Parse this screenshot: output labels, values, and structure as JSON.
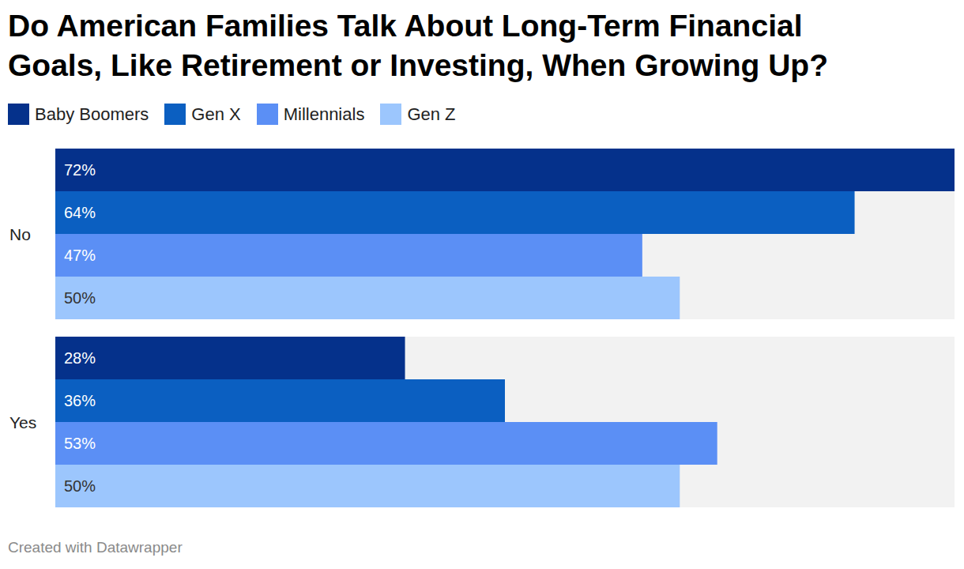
{
  "chart_data": {
    "type": "bar",
    "title": "Do American Families Talk About Long-Term Financial Goals, Like Retirement or Investing, When Growing Up?",
    "orientation": "horizontal",
    "categories": [
      "No",
      "Yes"
    ],
    "series": [
      {
        "name": "Baby Boomers",
        "color": "#05318b",
        "values": [
          72,
          28
        ],
        "value_labels": [
          "72%",
          "28%"
        ]
      },
      {
        "name": "Gen X",
        "color": "#0b5fc1",
        "values": [
          64,
          36
        ],
        "value_labels": [
          "64%",
          "36%"
        ]
      },
      {
        "name": "Millennials",
        "color": "#5b8ff5",
        "values": [
          47,
          53
        ],
        "value_labels": [
          "47%",
          "53%"
        ]
      },
      {
        "name": "Gen Z",
        "color": "#9cc6fd",
        "values": [
          50,
          50
        ],
        "value_labels": [
          "50%",
          "50%"
        ]
      }
    ],
    "xlim": [
      0,
      72
    ],
    "data_labels": true,
    "tick_labels": "y",
    "grid": false,
    "note": "Created with Datawrapper"
  }
}
